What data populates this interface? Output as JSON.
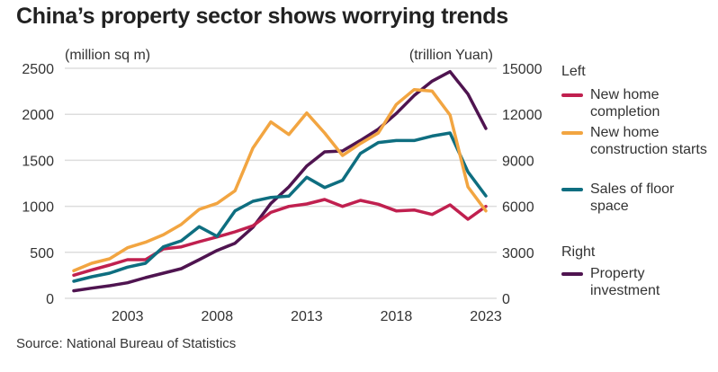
{
  "title": "China’s property sector shows worrying trends",
  "source": "Source: National Bureau of Statistics",
  "chart_data": {
    "type": "line",
    "x": [
      2000,
      2001,
      2002,
      2003,
      2004,
      2005,
      2006,
      2007,
      2008,
      2009,
      2010,
      2011,
      2012,
      2013,
      2014,
      2015,
      2016,
      2017,
      2018,
      2019,
      2020,
      2021,
      2022,
      2023
    ],
    "xticks": [
      "2003",
      "2008",
      "2013",
      "2018",
      "2023"
    ],
    "left_axis": {
      "label": "(million sq m)",
      "ylim": [
        0,
        2500
      ],
      "ticks": [
        "0",
        "500",
        "1000",
        "1500",
        "2000",
        "2500"
      ]
    },
    "right_axis": {
      "label": "(trillion Yuan)",
      "ylim": [
        0,
        15000
      ],
      "ticks": [
        "0",
        "3000",
        "6000",
        "9000",
        "12000",
        "15000"
      ]
    },
    "grid": true,
    "legend_position": "right",
    "legend_groups": {
      "left": "Left",
      "right": "Right"
    },
    "series": [
      {
        "name": "New home completion",
        "axis": "left",
        "color": "#c0204f",
        "values": [
          251,
          309,
          361,
          420,
          420,
          537,
          560,
          615,
          667,
          723,
          788,
          934,
          999,
          1025,
          1074,
          999,
          1064,
          1022,
          950,
          960,
          911,
          1016,
          859,
          999
        ]
      },
      {
        "name": "New home construction starts",
        "axis": "left",
        "color": "#f2a541",
        "values": [
          300,
          381,
          430,
          550,
          609,
          690,
          804,
          967,
          1032,
          1169,
          1634,
          1917,
          1780,
          2015,
          1797,
          1553,
          1683,
          1797,
          2106,
          2269,
          2252,
          1992,
          1211,
          950
        ]
      },
      {
        "name": "Sales of floor space",
        "axis": "left",
        "color": "#0e6e80",
        "values": [
          186,
          234,
          273,
          339,
          381,
          560,
          625,
          778,
          674,
          950,
          1055,
          1097,
          1110,
          1315,
          1204,
          1283,
          1575,
          1693,
          1715,
          1715,
          1764,
          1797,
          1374,
          1113
        ]
      },
      {
        "name": "Property investment",
        "axis": "right",
        "color": "#4f1450",
        "values": [
          490,
          664,
          820,
          1015,
          1347,
          1640,
          1934,
          2519,
          3125,
          3594,
          4629,
          6190,
          7266,
          8633,
          9550,
          9608,
          10292,
          11034,
          12050,
          13222,
          14160,
          14784,
          13320,
          11074
        ]
      }
    ]
  }
}
